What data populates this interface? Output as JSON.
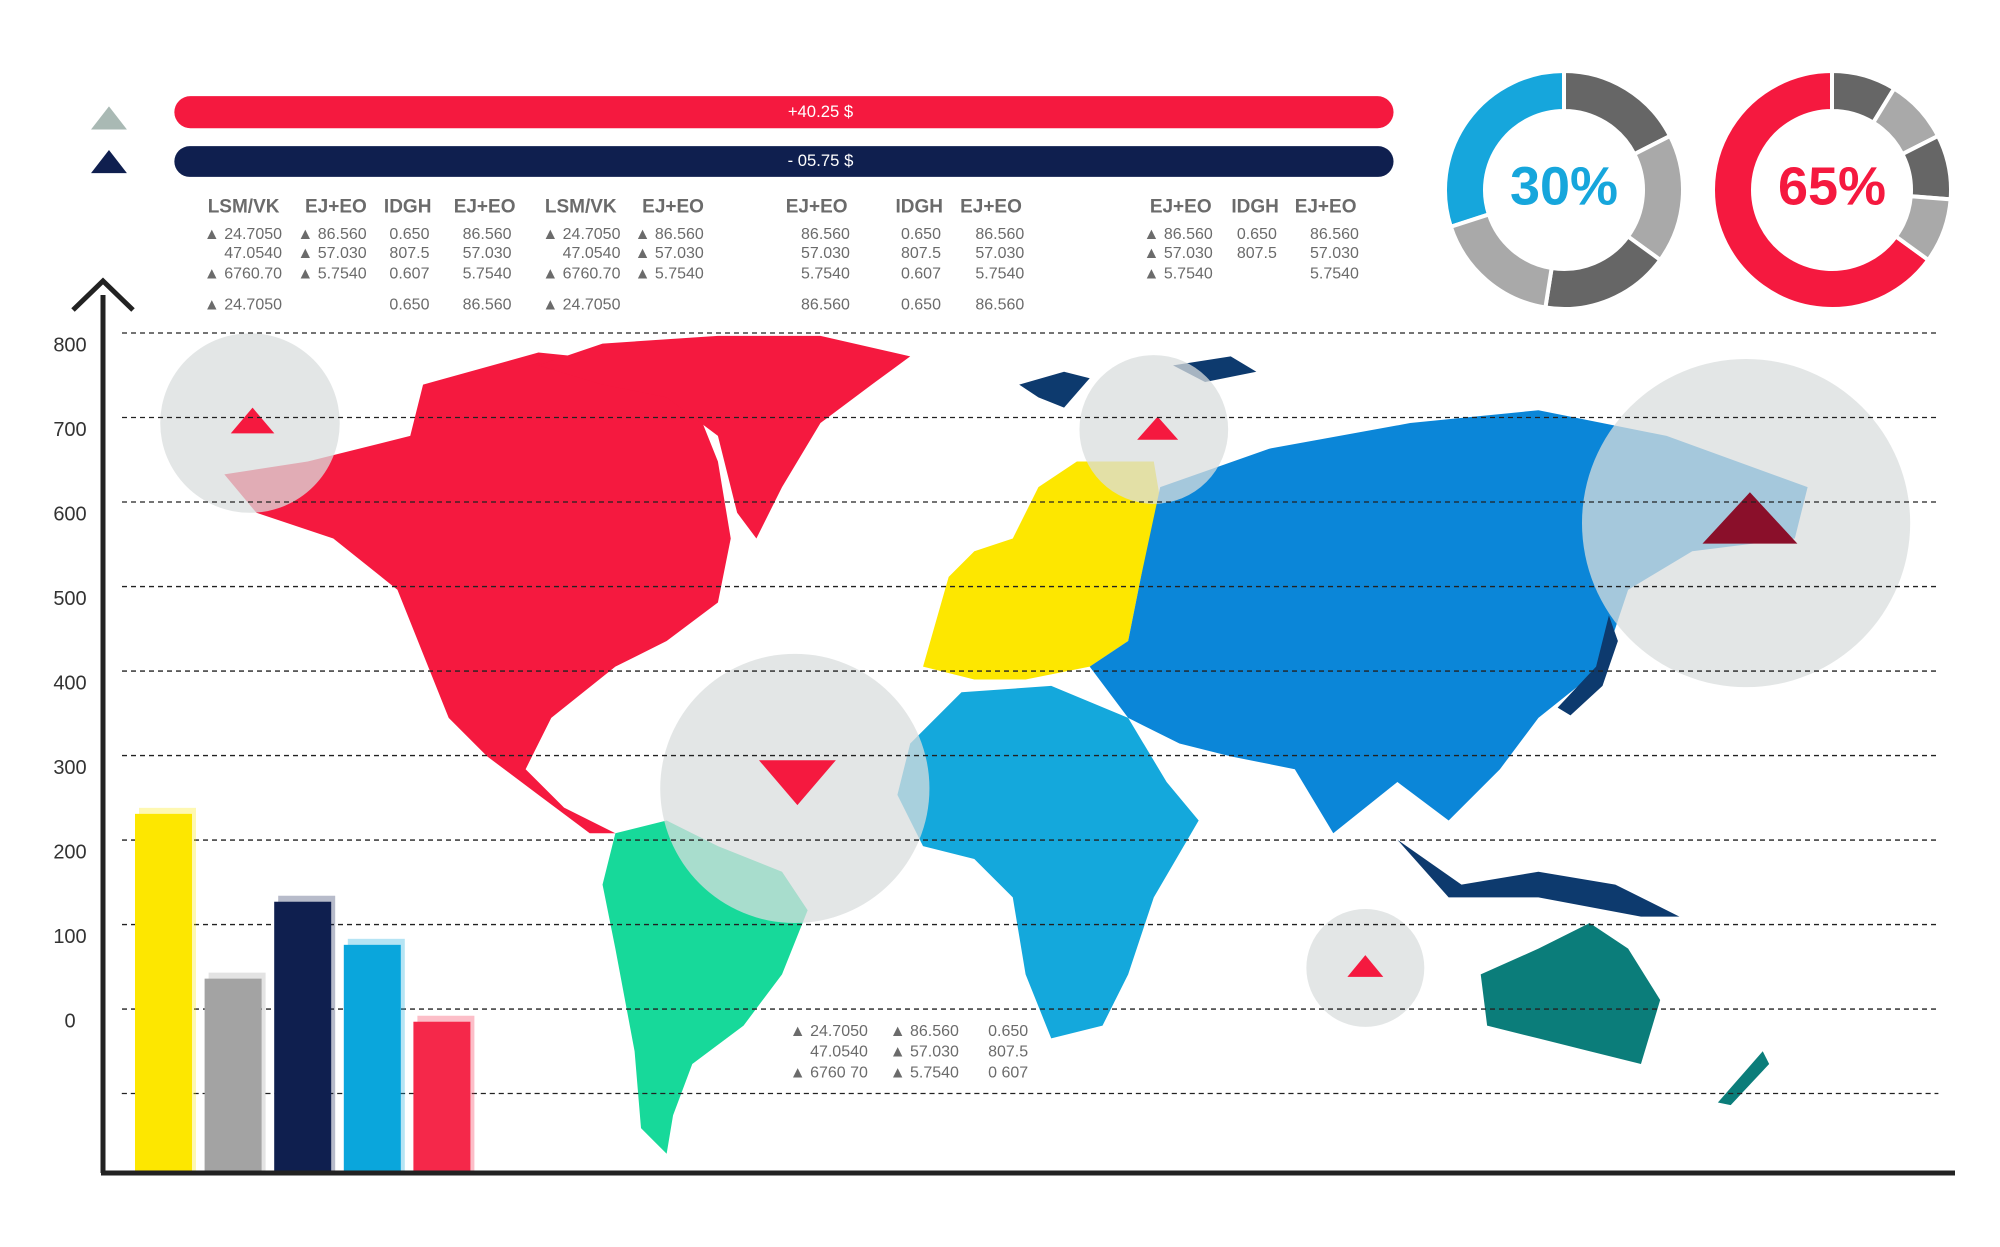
{
  "bars": [
    "+40.25 $",
    "- 05.75 $"
  ],
  "donuts": [
    {
      "value": 30,
      "label": "30%",
      "color": "#16a6dc"
    },
    {
      "value": 65,
      "label": "65%",
      "color": "#f5193f"
    }
  ],
  "tables": [
    {
      "columns": [
        {
          "header": "LSM/VK",
          "cells": [
            "▲ 24.7050",
            "47.0540",
            "▲ 6760.70",
            "▲ 24.7050"
          ]
        },
        {
          "header": "EJ+EO",
          "cells": [
            "▲ 86.560",
            "▲ 57.030",
            "▲ 5.7540"
          ]
        },
        {
          "header": "IDGH",
          "cells": [
            "0.650",
            "807.5",
            "0.607",
            "0.650"
          ]
        },
        {
          "header": "EJ+EO",
          "cells": [
            "86.560",
            "57.030",
            "5.7540",
            "86.560"
          ]
        }
      ]
    },
    {
      "columns": [
        {
          "header": "LSM/VK",
          "cells": [
            "▲ 24.7050",
            "47.0540",
            "▲ 6760.70",
            "▲ 24.7050"
          ]
        },
        {
          "header": "EJ+EO",
          "cells": [
            "▲ 86.560",
            "▲ 57.030",
            "▲ 5.7540"
          ]
        }
      ]
    },
    {
      "columns": [
        {
          "header": "EJ+EO",
          "cells": [
            "86.560",
            "57.030",
            "5.7540",
            "86.560"
          ]
        },
        {
          "header": "IDGH",
          "cells": [
            "0.650",
            "807.5",
            "0.607",
            "0.650"
          ]
        },
        {
          "header": "EJ+EO",
          "cells": [
            "86.560",
            "57.030",
            "5.7540",
            "86.560"
          ]
        }
      ]
    },
    {
      "columns": [
        {
          "header": "EJ+EO",
          "cells": [
            "▲ 86.560",
            "▲ 57.030",
            "▲ 5.7540"
          ]
        },
        {
          "header": "IDGH",
          "cells": [
            "0.650",
            "807.5"
          ]
        },
        {
          "header": "EJ+EO",
          "cells": [
            "86.560",
            "57.030",
            "5.7540"
          ]
        }
      ]
    },
    {
      "columns": [
        {
          "cells": [
            "▲ 24.7050",
            "47.0540",
            "▲ 6760 70"
          ]
        },
        {
          "cells": [
            "▲ 86.560",
            "▲ 57.030",
            "▲ 5.7540"
          ]
        },
        {
          "cells": [
            "0.650",
            "807.5",
            "0 607"
          ]
        }
      ]
    }
  ],
  "chart_data": {
    "type": "bar",
    "categories": [
      null,
      null,
      null,
      null,
      null
    ],
    "values": [
      231,
      36,
      127,
      76,
      -15
    ],
    "colors": [
      "#fde700",
      "#a3a3a3",
      "#0f1f4f",
      "#0aa6dc",
      "#f5284a"
    ],
    "ylim": [
      -194,
      845
    ],
    "yticks": [
      0,
      100,
      200,
      300,
      400,
      500,
      600,
      700,
      800
    ],
    "grid": true
  }
}
